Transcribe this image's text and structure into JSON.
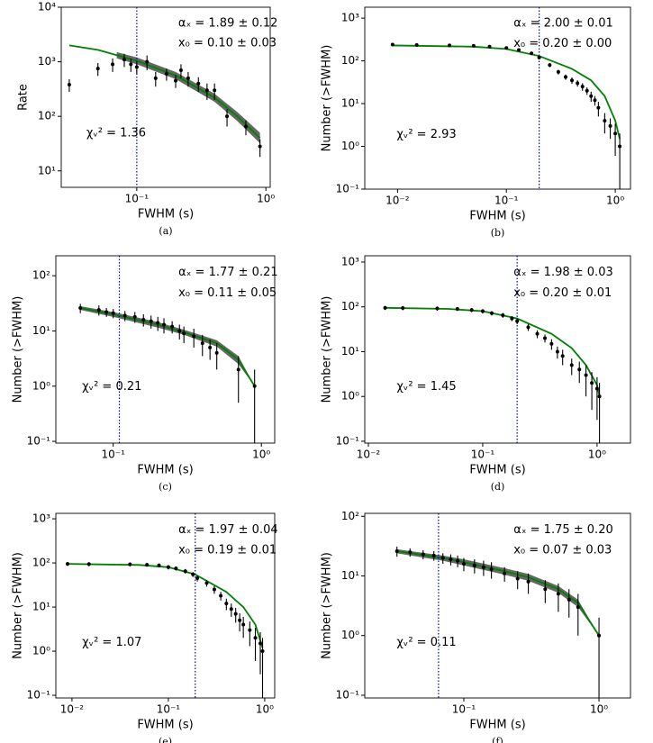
{
  "chart_data": [
    {
      "type": "scatter",
      "panel_label": "(a)",
      "xlabel": "FWHM (s)",
      "ylabel": "Rate",
      "annotations": [
        "αₓ = 1.89 ± 0.12",
        "x₀ = 0.10 ± 0.03",
        "χᵥ² = 1.36"
      ],
      "log_x": true,
      "log_y": true,
      "xlim": [
        0.026,
        1.08
      ],
      "ylim": [
        5,
        10000
      ],
      "xticks": [
        {
          "value": 0.1,
          "label": "10⁻¹"
        },
        {
          "value": 1,
          "label": "10⁰"
        }
      ],
      "yticks": [
        {
          "value": 10,
          "label": "10¹"
        },
        {
          "value": 100,
          "label": "10²"
        },
        {
          "value": 1000,
          "label": "10³"
        },
        {
          "value": 10000,
          "label": "10⁴"
        }
      ],
      "x": [
        0.03,
        0.05,
        0.065,
        0.08,
        0.09,
        0.1,
        0.12,
        0.14,
        0.17,
        0.2,
        0.22,
        0.25,
        0.3,
        0.35,
        0.4,
        0.5,
        0.7,
        0.9
      ],
      "y": [
        380,
        750,
        900,
        1100,
        900,
        800,
        1000,
        500,
        600,
        450,
        700,
        500,
        400,
        300,
        300,
        100,
        65,
        28
      ],
      "yerr": [
        100,
        200,
        250,
        300,
        250,
        200,
        300,
        150,
        150,
        120,
        200,
        150,
        120,
        100,
        100,
        35,
        20,
        10
      ],
      "color": "#000000",
      "fit": {
        "color": "#008000",
        "x": [
          0.03,
          0.05,
          0.07,
          0.1,
          0.2,
          0.4,
          0.6,
          0.9
        ],
        "y": [
          2000,
          1650,
          1320,
          1040,
          560,
          220,
          100,
          40
        ]
      },
      "band": {
        "color": "#555555",
        "x": [
          0.07,
          0.1,
          0.2,
          0.4,
          0.6,
          0.9
        ],
        "lower": [
          1150,
          900,
          480,
          185,
          82,
          32
        ],
        "upper": [
          1500,
          1200,
          650,
          260,
          120,
          50
        ]
      },
      "threshold": 0.1,
      "threshold_color": "#0000cc"
    },
    {
      "type": "scatter",
      "panel_label": "(b)",
      "xlabel": "FWHM (s)",
      "ylabel": "Number (>FWHM)",
      "annotations": [
        "αₓ = 2.00 ± 0.01",
        "x₀ = 0.20 ± 0.00",
        "χᵥ² = 2.93"
      ],
      "log_x": true,
      "log_y": true,
      "xlim": [
        0.005,
        1.38
      ],
      "ylim": [
        0.1,
        1800
      ],
      "xticks": [
        {
          "value": 0.01,
          "label": "10⁻²"
        },
        {
          "value": 0.1,
          "label": "10⁻¹"
        },
        {
          "value": 1,
          "label": "10⁰"
        }
      ],
      "yticks": [
        {
          "value": 0.1,
          "label": "10⁻¹"
        },
        {
          "value": 1,
          "label": "10⁰"
        },
        {
          "value": 10,
          "label": "10¹"
        },
        {
          "value": 100,
          "label": "10²"
        },
        {
          "value": 1000,
          "label": "10³"
        }
      ],
      "x": [
        0.009,
        0.015,
        0.03,
        0.05,
        0.07,
        0.1,
        0.13,
        0.17,
        0.2,
        0.25,
        0.3,
        0.35,
        0.4,
        0.45,
        0.5,
        0.55,
        0.6,
        0.65,
        0.7,
        0.8,
        0.9,
        1.0,
        1.1
      ],
      "y": [
        240,
        235,
        230,
        225,
        215,
        200,
        180,
        150,
        120,
        80,
        55,
        42,
        35,
        30,
        25,
        20,
        15,
        12,
        8,
        4,
        3,
        2,
        1
      ],
      "yerr": [
        15,
        15,
        15,
        15,
        15,
        14,
        13,
        12,
        11,
        9,
        7,
        6,
        6,
        5,
        5,
        4,
        4,
        3,
        3,
        2,
        1.5,
        1.4,
        1
      ],
      "color": "#000000",
      "fit": {
        "color": "#008000",
        "x": [
          0.009,
          0.05,
          0.1,
          0.2,
          0.4,
          0.6,
          0.8,
          1.0,
          1.1
        ],
        "y": [
          230,
          215,
          190,
          130,
          65,
          35,
          15,
          4,
          1.5
        ]
      },
      "threshold": 0.2,
      "threshold_color": "#0000cc"
    },
    {
      "type": "scatter",
      "panel_label": "(c)",
      "xlabel": "FWHM (s)",
      "ylabel": "Number (>FWHM)",
      "annotations": [
        "αₓ = 1.77 ± 0.21",
        "x₀ = 0.11 ± 0.05",
        "χᵥ² = 0.21"
      ],
      "log_x": true,
      "log_y": true,
      "xlim": [
        0.041,
        1.23
      ],
      "ylim": [
        0.093,
        230
      ],
      "xticks": [
        {
          "value": 0.1,
          "label": "10⁻¹"
        },
        {
          "value": 1,
          "label": "10⁰"
        }
      ],
      "yticks": [
        {
          "value": 0.1,
          "label": "10⁻¹"
        },
        {
          "value": 1,
          "label": "10⁰"
        },
        {
          "value": 10,
          "label": "10¹"
        },
        {
          "value": 100,
          "label": "10²"
        }
      ],
      "x": [
        0.06,
        0.08,
        0.09,
        0.1,
        0.12,
        0.14,
        0.16,
        0.18,
        0.2,
        0.22,
        0.25,
        0.28,
        0.3,
        0.35,
        0.4,
        0.45,
        0.5,
        0.7,
        0.9
      ],
      "y": [
        26,
        24,
        22,
        21,
        19,
        18,
        16,
        15,
        14,
        13,
        12,
        10,
        9,
        8,
        6,
        5,
        4,
        2,
        1
      ],
      "yerr": [
        5,
        5,
        4,
        4,
        4,
        4,
        4,
        4,
        4,
        4,
        3,
        3,
        3,
        3,
        2.5,
        2,
        2,
        1.5,
        1
      ],
      "color": "#000000",
      "fit": {
        "color": "#008000",
        "x": [
          0.06,
          0.1,
          0.2,
          0.3,
          0.5,
          0.7,
          0.9
        ],
        "y": [
          26,
          20,
          13,
          9.5,
          6,
          3,
          1
        ]
      },
      "band": {
        "color": "#555555",
        "x": [
          0.06,
          0.1,
          0.2,
          0.3,
          0.5,
          0.7,
          0.9
        ],
        "lower": [
          24,
          18,
          11.5,
          8.5,
          5.2,
          2.5,
          1
        ],
        "upper": [
          28,
          22,
          14.5,
          10.5,
          6.8,
          3.5,
          1
        ]
      },
      "threshold": 0.11,
      "threshold_color": "#0000cc"
    },
    {
      "type": "scatter",
      "panel_label": "(d)",
      "xlabel": "FWHM (s)",
      "ylabel": "Number (>FWHM)",
      "annotations": [
        "αₓ = 1.98 ± 0.03",
        "x₀ = 0.20 ± 0.01",
        "χᵥ² = 1.45"
      ],
      "log_x": true,
      "log_y": true,
      "xlim": [
        0.0093,
        1.96
      ],
      "ylim": [
        0.091,
        1380
      ],
      "xticks": [
        {
          "value": 0.01,
          "label": "10⁻²"
        },
        {
          "value": 0.1,
          "label": "10⁻¹"
        },
        {
          "value": 1,
          "label": "10⁰"
        }
      ],
      "yticks": [
        {
          "value": 0.1,
          "label": "10⁻¹"
        },
        {
          "value": 1,
          "label": "10⁰"
        },
        {
          "value": 10,
          "label": "10¹"
        },
        {
          "value": 100,
          "label": "10²"
        },
        {
          "value": 1000,
          "label": "10³"
        }
      ],
      "x": [
        0.014,
        0.02,
        0.04,
        0.06,
        0.08,
        0.1,
        0.12,
        0.15,
        0.18,
        0.2,
        0.25,
        0.3,
        0.35,
        0.4,
        0.45,
        0.5,
        0.6,
        0.7,
        0.8,
        0.9,
        1.0,
        1.05
      ],
      "y": [
        95,
        94,
        92,
        90,
        85,
        80,
        72,
        65,
        55,
        48,
        35,
        25,
        20,
        15,
        10,
        8,
        5,
        4,
        3,
        2,
        1.5,
        1
      ],
      "yerr": [
        10,
        10,
        10,
        9,
        9,
        9,
        8,
        8,
        7,
        7,
        6,
        5,
        4,
        4,
        3,
        3,
        2,
        2,
        2,
        1.5,
        1.2,
        1
      ],
      "color": "#000000",
      "fit": {
        "color": "#008000",
        "x": [
          0.014,
          0.05,
          0.1,
          0.2,
          0.4,
          0.6,
          0.8,
          1.0,
          1.05
        ],
        "y": [
          95,
          90,
          80,
          55,
          25,
          12,
          5,
          1.8,
          1
        ]
      },
      "threshold": 0.2,
      "threshold_color": "#0000cc"
    },
    {
      "type": "scatter",
      "panel_label": "(e)",
      "xlabel": "FWHM (s)",
      "ylabel": "Number (>FWHM)",
      "annotations": [
        "αₓ = 1.97 ± 0.04",
        "x₀ = 0.19 ± 0.01",
        "χᵥ² = 1.07"
      ],
      "log_x": true,
      "log_y": true,
      "xlim": [
        0.0068,
        1.27
      ],
      "ylim": [
        0.087,
        1330
      ],
      "xticks": [
        {
          "value": 0.01,
          "label": "10⁻²"
        },
        {
          "value": 0.1,
          "label": "10⁻¹"
        },
        {
          "value": 1,
          "label": "10⁰"
        }
      ],
      "yticks": [
        {
          "value": 0.1,
          "label": "10⁻¹"
        },
        {
          "value": 1,
          "label": "10⁰"
        },
        {
          "value": 10,
          "label": "10¹"
        },
        {
          "value": 100,
          "label": "10²"
        },
        {
          "value": 1000,
          "label": "10³"
        }
      ],
      "x": [
        0.009,
        0.015,
        0.04,
        0.06,
        0.08,
        0.1,
        0.12,
        0.15,
        0.18,
        0.2,
        0.25,
        0.3,
        0.35,
        0.4,
        0.45,
        0.5,
        0.55,
        0.6,
        0.7,
        0.8,
        0.9,
        0.95
      ],
      "y": [
        95,
        94,
        93,
        91,
        88,
        80,
        75,
        65,
        55,
        45,
        35,
        25,
        18,
        12,
        9,
        7,
        5,
        4,
        3,
        2,
        1.5,
        1
      ],
      "yerr": [
        10,
        10,
        10,
        9,
        9,
        9,
        8,
        8,
        7,
        7,
        6,
        5,
        4,
        3.5,
        3,
        2.6,
        2.2,
        2,
        1.7,
        1.4,
        1.2,
        1
      ],
      "color": "#000000",
      "fit": {
        "color": "#008000",
        "x": [
          0.009,
          0.05,
          0.1,
          0.19,
          0.4,
          0.6,
          0.8,
          0.95
        ],
        "y": [
          95,
          90,
          80,
          55,
          22,
          10,
          4,
          1.2
        ]
      },
      "threshold": 0.19,
      "threshold_color": "#0000cc"
    },
    {
      "type": "scatter",
      "panel_label": "(f)",
      "xlabel": "FWHM (s)",
      "ylabel": "Number (>FWHM)",
      "annotations": [
        "αₓ = 1.75 ± 0.20",
        "x₀ = 0.07 ± 0.03",
        "χᵥ² = 0.11"
      ],
      "log_x": true,
      "log_y": true,
      "xlim": [
        0.0185,
        1.71
      ],
      "ylim": [
        0.09,
        112
      ],
      "xticks": [
        {
          "value": 0.1,
          "label": "10⁻¹"
        },
        {
          "value": 1,
          "label": "10⁰"
        }
      ],
      "yticks": [
        {
          "value": 0.1,
          "label": "10⁻¹"
        },
        {
          "value": 1,
          "label": "10⁰"
        },
        {
          "value": 10,
          "label": "10¹"
        },
        {
          "value": 100,
          "label": "10²"
        }
      ],
      "x": [
        0.032,
        0.04,
        0.05,
        0.06,
        0.07,
        0.08,
        0.09,
        0.1,
        0.12,
        0.14,
        0.16,
        0.2,
        0.25,
        0.3,
        0.4,
        0.5,
        0.6,
        0.7,
        1.0
      ],
      "y": [
        26,
        25,
        23,
        22,
        20,
        19,
        18,
        16,
        15,
        14,
        13,
        11,
        9,
        8,
        6,
        5,
        4,
        3,
        1
      ],
      "yerr": [
        5,
        4,
        4,
        4,
        4,
        4,
        4,
        4,
        4,
        4,
        4,
        3,
        3,
        3,
        2.5,
        2.5,
        2,
        2,
        1
      ],
      "color": "#000000",
      "fit": {
        "color": "#008000",
        "x": [
          0.032,
          0.07,
          0.1,
          0.2,
          0.3,
          0.5,
          0.7,
          1.0
        ],
        "y": [
          26,
          20,
          17,
          12,
          9.5,
          6,
          3.5,
          1
        ]
      },
      "band": {
        "color": "#555555",
        "x": [
          0.032,
          0.07,
          0.1,
          0.2,
          0.3,
          0.5,
          0.7,
          1.0
        ],
        "lower": [
          24,
          18,
          15,
          10.5,
          8.3,
          5.2,
          3,
          1
        ],
        "upper": [
          28,
          22,
          19,
          13.5,
          10.8,
          6.8,
          4,
          1
        ]
      },
      "threshold": 0.065,
      "threshold_color": "#0000cc"
    }
  ]
}
